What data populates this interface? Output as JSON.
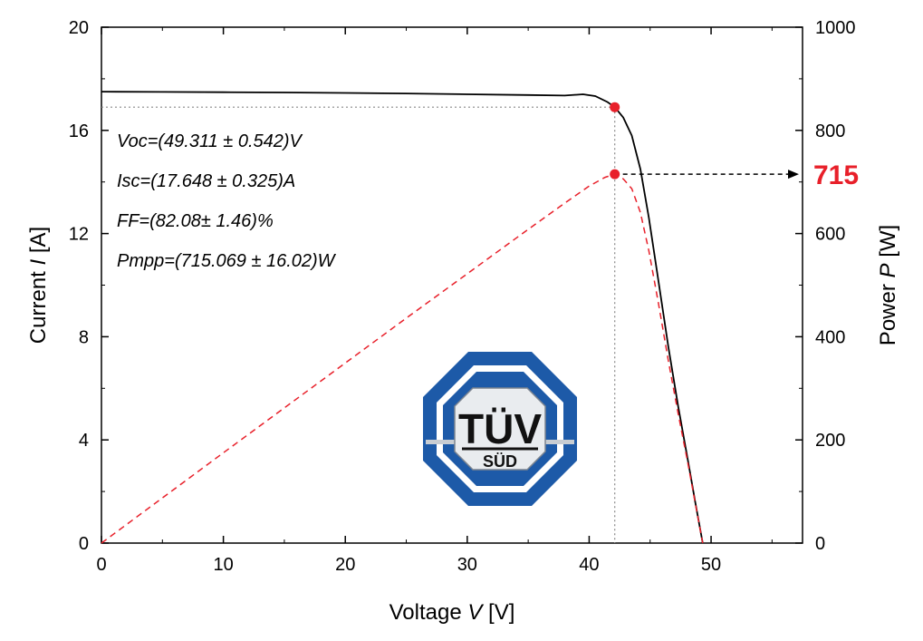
{
  "chart_data": {
    "type": "line",
    "xlabel": {
      "name": "Voltage ",
      "symbol": "V",
      "unit": " [V]"
    },
    "ylabel": {
      "name": "Current ",
      "symbol": "I",
      "unit": " [A]"
    },
    "y2label": {
      "name": "Power ",
      "symbol": "P",
      "unit": " [W]"
    },
    "xlim": [
      0,
      57.5
    ],
    "ylim": [
      0,
      20
    ],
    "y2lim": [
      0,
      1000
    ],
    "x_ticks": [
      0,
      10,
      20,
      30,
      40,
      50
    ],
    "y_ticks": [
      0,
      4,
      8,
      12,
      16,
      20
    ],
    "y2_ticks": [
      0,
      200,
      400,
      600,
      800,
      1000
    ],
    "grid": false,
    "series": [
      {
        "axis": "left",
        "color": "#000000",
        "style": "solid",
        "points": [
          [
            0,
            17.5
          ],
          [
            5,
            17.49
          ],
          [
            10,
            17.48
          ],
          [
            15,
            17.47
          ],
          [
            20,
            17.45
          ],
          [
            25,
            17.43
          ],
          [
            30,
            17.4
          ],
          [
            35,
            17.37
          ],
          [
            38,
            17.35
          ],
          [
            39.5,
            17.4
          ],
          [
            40.5,
            17.33
          ],
          [
            41.5,
            17.1
          ],
          [
            42.1,
            16.9
          ],
          [
            42.8,
            16.5
          ],
          [
            43.5,
            15.8
          ],
          [
            44.2,
            14.5
          ],
          [
            44.9,
            12.6
          ],
          [
            45.7,
            10.1
          ],
          [
            46.5,
            7.6
          ],
          [
            47.3,
            5.3
          ],
          [
            48.1,
            3.2
          ],
          [
            48.7,
            1.6
          ],
          [
            49.311,
            0
          ]
        ]
      },
      {
        "axis": "right",
        "color": "#e8202a",
        "style": "dashed",
        "points": [
          [
            0,
            0
          ],
          [
            5,
            87.5
          ],
          [
            10,
            175
          ],
          [
            15,
            262
          ],
          [
            20,
            349
          ],
          [
            25,
            436
          ],
          [
            30,
            522
          ],
          [
            35,
            608
          ],
          [
            38,
            659
          ],
          [
            40,
            692
          ],
          [
            41.3,
            709
          ],
          [
            42.1,
            715
          ],
          [
            42.8,
            706
          ],
          [
            43.5,
            687
          ],
          [
            44.2,
            641
          ],
          [
            44.9,
            566
          ],
          [
            45.7,
            462
          ],
          [
            46.5,
            353
          ],
          [
            47.3,
            251
          ],
          [
            48.1,
            154
          ],
          [
            48.7,
            78
          ],
          [
            49.311,
            0
          ]
        ]
      }
    ],
    "mpp": {
      "voltage": 42.1,
      "current": 16.9,
      "power": 715,
      "label": "715"
    },
    "annotations": [
      "Voc=(49.311 ± 0.542)V",
      "Isc=(17.648 ± 0.325)A",
      "FF=(82.08± 1.46)%",
      "Pmpp=(715.069 ± 16.02)W"
    ],
    "logo": {
      "line1": "TÜV",
      "line2": "SÜD",
      "blue": "#1d5aa8",
      "silver": "#c8cdd2"
    }
  }
}
